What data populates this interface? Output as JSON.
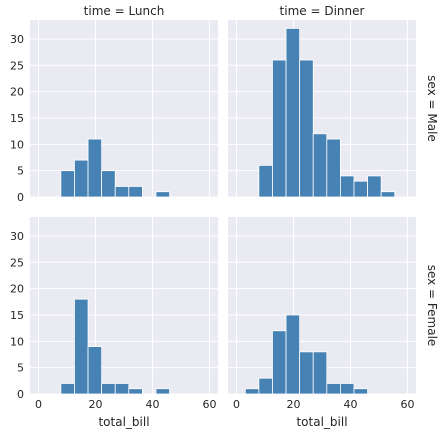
{
  "chart_data": {
    "type": "bar",
    "style": "faceted histogram grid",
    "x_variable": "total_bill",
    "xlabel": "total_bill",
    "ylabel": "",
    "xlim": [
      -3,
      63
    ],
    "ylim": [
      0,
      33.6
    ],
    "x_ticks": [
      0,
      20,
      40,
      60
    ],
    "y_ticks": [
      0,
      5,
      10,
      15,
      20,
      25,
      30
    ],
    "bin_edges": [
      3.07,
      7.84,
      12.61,
      17.38,
      22.15,
      26.92,
      31.69,
      36.46,
      41.23,
      46.0,
      50.77,
      55.54
    ],
    "bar_color": "#4682b4",
    "panel_background": "#eaeaf2",
    "grid": true,
    "col_labels": [
      "time = Lunch",
      "time = Dinner"
    ],
    "row_labels": [
      "sex = Male",
      "sex = Female"
    ],
    "facets": [
      {
        "row": 0,
        "col": 0,
        "counts": [
          0,
          5,
          7,
          11,
          5,
          2,
          2,
          0,
          1,
          0,
          0
        ]
      },
      {
        "row": 0,
        "col": 1,
        "counts": [
          0,
          6,
          26,
          32,
          26,
          12,
          11,
          4,
          3,
          4,
          1
        ]
      },
      {
        "row": 1,
        "col": 0,
        "counts": [
          0,
          2,
          18,
          9,
          2,
          2,
          1,
          0,
          1,
          0,
          0
        ]
      },
      {
        "row": 1,
        "col": 1,
        "counts": [
          1,
          3,
          12,
          15,
          8,
          8,
          2,
          2,
          1,
          0,
          0
        ]
      }
    ]
  }
}
